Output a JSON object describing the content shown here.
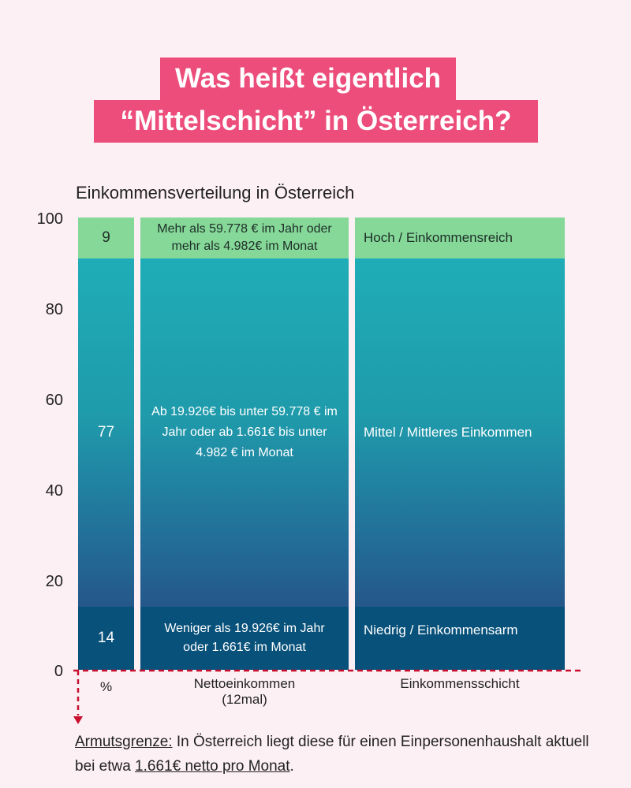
{
  "title_line1": "Was heißt eigentlich",
  "title_line2": "“Mittelschicht” in Österreich?",
  "chart_data": {
    "type": "bar",
    "subtitle": "Einkommensverteilung in Österreich",
    "y_ticks": [
      "0",
      "20",
      "40",
      "60",
      "80",
      "100"
    ],
    "ylim": [
      0,
      100
    ],
    "x_labels": {
      "percent": "%",
      "net_line1": "Nettoeinkommen",
      "net_line2": "(12mal)",
      "class": "Einkommensschicht"
    },
    "segments": [
      {
        "key": "low",
        "value": 14,
        "value_label": "14",
        "income": "Weniger als 19.926€ im Jahr oder 1.661€ im Monat",
        "class": "Niedrig / Einkommensarm",
        "color": "#08517a"
      },
      {
        "key": "mid",
        "value": 77,
        "value_label": "77",
        "income": "Ab 19.926€ bis unter 59.778 € im Jahr oder ab 1.661€ bis unter 4.982 € im Monat",
        "class": "Mittel / Mittleres Einkommen",
        "color": "#1fa9b5"
      },
      {
        "key": "high",
        "value": 9,
        "value_label": "9",
        "income": "Mehr als 59.778 € im Jahr oder mehr als 4.982€ im Monat",
        "class": "Hoch / Einkommensreich",
        "color": "#85d898"
      }
    ],
    "accent_color": "#c8102e"
  },
  "footnote": {
    "label": "Armutsgrenze:",
    "text1": " In Österreich liegt diese für einen Einpersonenhaushalt aktuell bei etwa ",
    "amount": "1.661€ netto pro Monat",
    "end": "."
  }
}
